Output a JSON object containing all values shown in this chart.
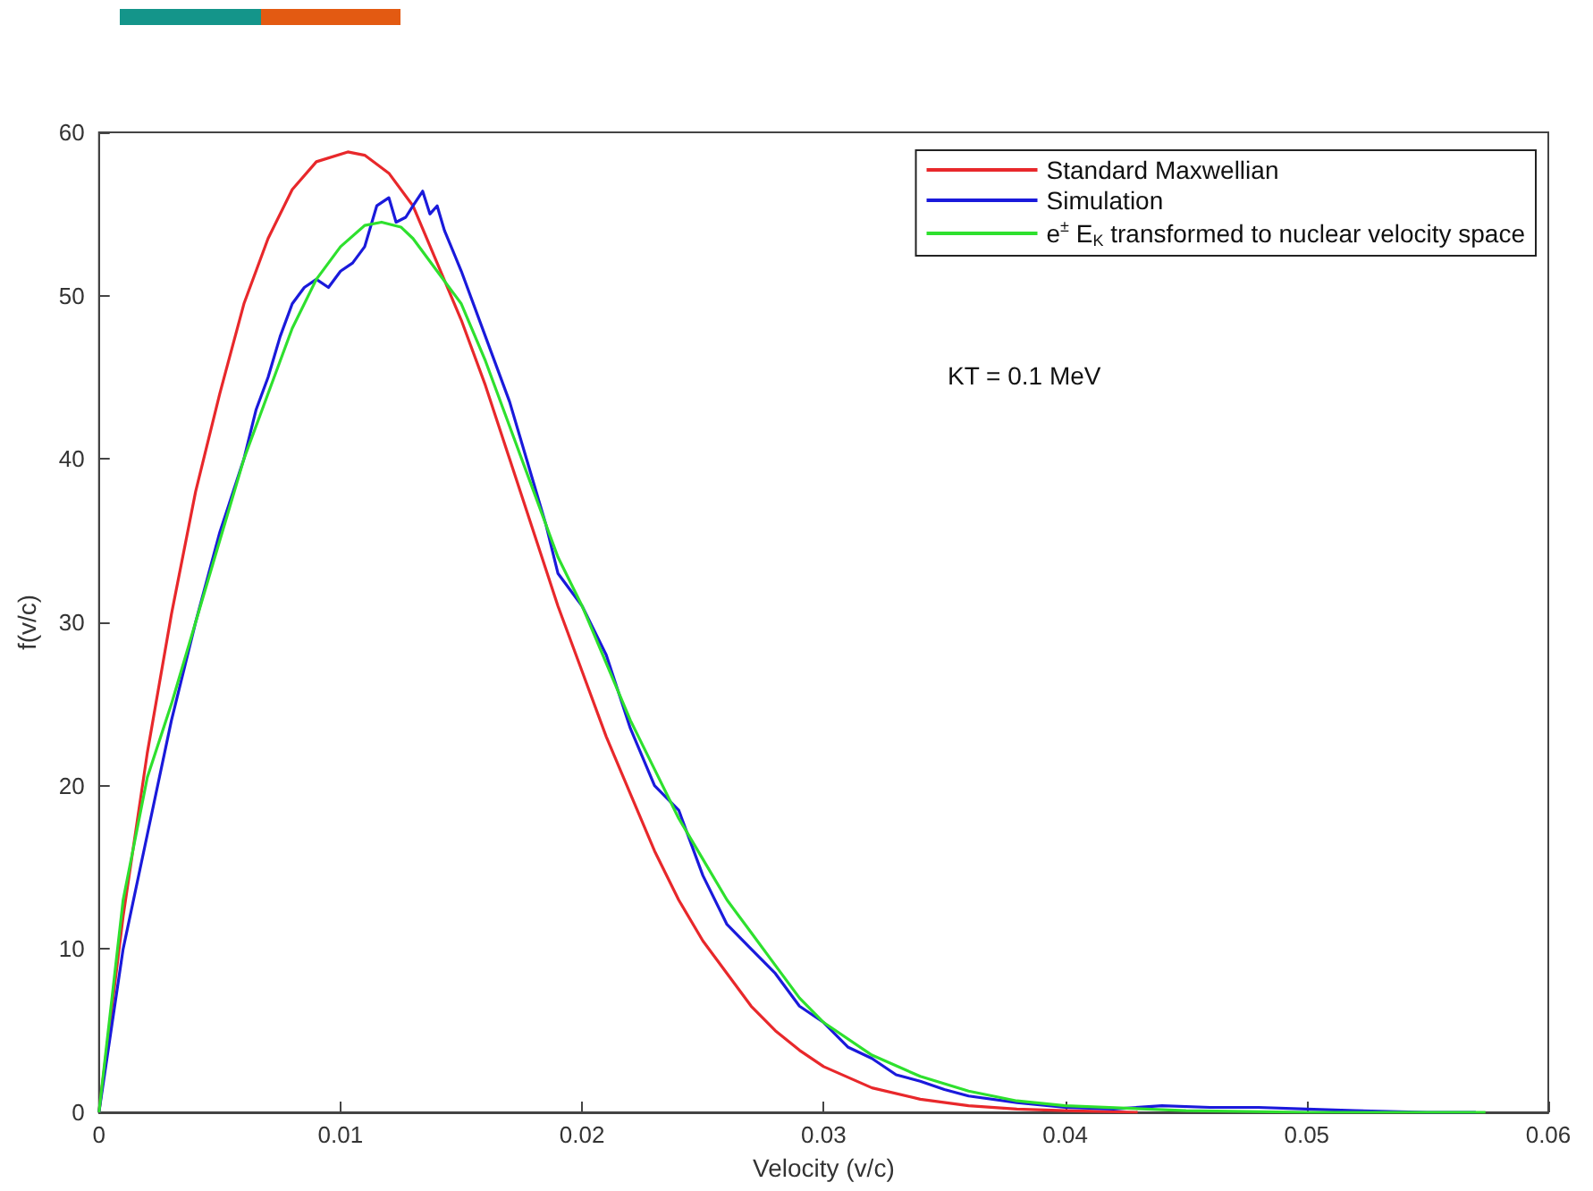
{
  "chart_data": {
    "type": "line",
    "xlabel": "Velocity (v/c)",
    "ylabel": "f(v/c)",
    "annotations": [
      "KT = 0.1 MeV"
    ],
    "xlim": [
      0,
      0.06
    ],
    "xticks": [
      {
        "value": 0,
        "label": "0"
      },
      0.01,
      0.02,
      0.03,
      0.04,
      0.05,
      0.06
    ],
    "ylim": [
      0,
      60
    ],
    "yticks": [
      0,
      10,
      20,
      30,
      40,
      50,
      60
    ],
    "grid": false,
    "legend": "top right",
    "marker": "none",
    "line_style": "solid",
    "series": [
      {
        "name": "Standard Maxwellian",
        "color": "#e8282b",
        "x": [
          0,
          0.001,
          0.002,
          0.003,
          0.004,
          0.005,
          0.006,
          0.007,
          0.008,
          0.009,
          0.0103,
          0.011,
          0.012,
          0.013,
          0.014,
          0.015,
          0.016,
          0.017,
          0.018,
          0.019,
          0.02,
          0.021,
          0.022,
          0.023,
          0.024,
          0.025,
          0.026,
          0.027,
          0.028,
          0.029,
          0.03,
          0.032,
          0.034,
          0.036,
          0.038,
          0.04,
          0.043
        ],
        "values": [
          0,
          12,
          22,
          30.5,
          38,
          44,
          49.5,
          53.5,
          56.5,
          58.2,
          58.8,
          58.6,
          57.5,
          55.5,
          52,
          48.5,
          44.5,
          40,
          35.5,
          31,
          27,
          23,
          19.5,
          16,
          13,
          10.5,
          8.5,
          6.5,
          5,
          3.8,
          2.8,
          1.5,
          0.8,
          0.4,
          0.2,
          0.1,
          0
        ]
      },
      {
        "name": "Simulation",
        "color": "#1a1adb",
        "x": [
          0,
          0.001,
          0.002,
          0.003,
          0.004,
          0.005,
          0.006,
          0.0065,
          0.007,
          0.0075,
          0.008,
          0.0085,
          0.009,
          0.0095,
          0.01,
          0.0105,
          0.011,
          0.0115,
          0.012,
          0.0123,
          0.0127,
          0.013,
          0.0134,
          0.0137,
          0.014,
          0.0143,
          0.015,
          0.016,
          0.017,
          0.018,
          0.0185,
          0.019,
          0.02,
          0.021,
          0.022,
          0.023,
          0.024,
          0.025,
          0.026,
          0.027,
          0.028,
          0.029,
          0.03,
          0.031,
          0.032,
          0.033,
          0.034,
          0.035,
          0.036,
          0.038,
          0.04,
          0.042,
          0.044,
          0.046,
          0.048,
          0.05,
          0.052,
          0.055,
          0.057
        ],
        "values": [
          0,
          10,
          17,
          24,
          30,
          35.5,
          40,
          43,
          45,
          47.5,
          49.5,
          50.5,
          51,
          50.5,
          51.5,
          52,
          53,
          55.5,
          56,
          54.5,
          54.8,
          55.5,
          56.4,
          55,
          55.5,
          54,
          51.5,
          47.5,
          43.5,
          38.5,
          36,
          33,
          31,
          28,
          23.5,
          20,
          18.5,
          14.5,
          11.5,
          10,
          8.5,
          6.5,
          5.5,
          4,
          3.3,
          2.3,
          1.9,
          1.4,
          1,
          0.6,
          0.3,
          0.2,
          0.4,
          0.3,
          0.3,
          0.2,
          0.1,
          0,
          0
        ]
      },
      {
        "name": "e$^{±}$ E$_{K}$ transformed to nuclear velocity space",
        "color": "#2ee02e",
        "x": [
          0,
          0.001,
          0.002,
          0.003,
          0.004,
          0.005,
          0.006,
          0.007,
          0.008,
          0.009,
          0.01,
          0.011,
          0.0117,
          0.0125,
          0.013,
          0.014,
          0.015,
          0.016,
          0.017,
          0.018,
          0.019,
          0.02,
          0.021,
          0.022,
          0.023,
          0.024,
          0.025,
          0.026,
          0.027,
          0.028,
          0.029,
          0.03,
          0.032,
          0.034,
          0.036,
          0.038,
          0.04,
          0.045,
          0.05,
          0.0574
        ],
        "values": [
          0,
          13,
          20.5,
          25,
          30,
          35,
          40,
          44,
          48,
          51,
          53,
          54.3,
          54.5,
          54.2,
          53.5,
          51.5,
          49.5,
          46,
          42,
          38,
          34,
          31,
          27.5,
          24,
          21,
          18,
          15.5,
          13,
          11,
          9,
          7,
          5.5,
          3.5,
          2.2,
          1.3,
          0.7,
          0.4,
          0.1,
          0,
          0
        ]
      }
    ]
  }
}
